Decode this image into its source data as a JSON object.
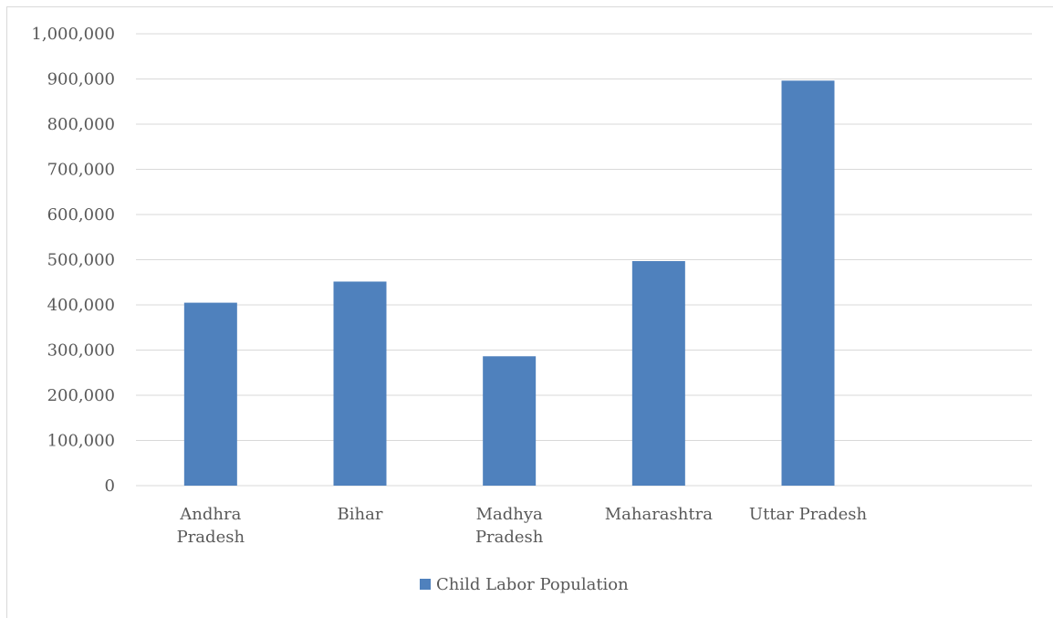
{
  "chart_data": {
    "type": "bar",
    "title": "",
    "xlabel": "",
    "ylabel": "",
    "categories": [
      "Andhra Pradesh",
      "Bihar",
      "Madhya Pradesh",
      "Maharashtra",
      "Uttar Pradesh",
      ""
    ],
    "category_lines": [
      [
        "Andhra",
        "Pradesh"
      ],
      [
        "Bihar"
      ],
      [
        "Madhya",
        "Pradesh"
      ],
      [
        "Maharashtra"
      ],
      [
        "Uttar Pradesh"
      ],
      []
    ],
    "series": [
      {
        "name": "Child Labor Population",
        "values": [
          404851,
          451590,
          286310,
          496916,
          896301,
          null
        ],
        "color": "#4f81bd"
      }
    ],
    "ylim": [
      0,
      1000000
    ],
    "yticks": [
      0,
      100000,
      200000,
      300000,
      400000,
      500000,
      600000,
      700000,
      800000,
      900000,
      1000000
    ],
    "ytick_labels": [
      "0",
      "100,000",
      "200,000",
      "300,000",
      "400,000",
      "500,000",
      "600,000",
      "700,000",
      "800,000",
      "900,000",
      "1,000,000"
    ],
    "grid": true,
    "legend": "bottom",
    "gridline_color": "#d9d9d9",
    "text_color": "#595959"
  }
}
